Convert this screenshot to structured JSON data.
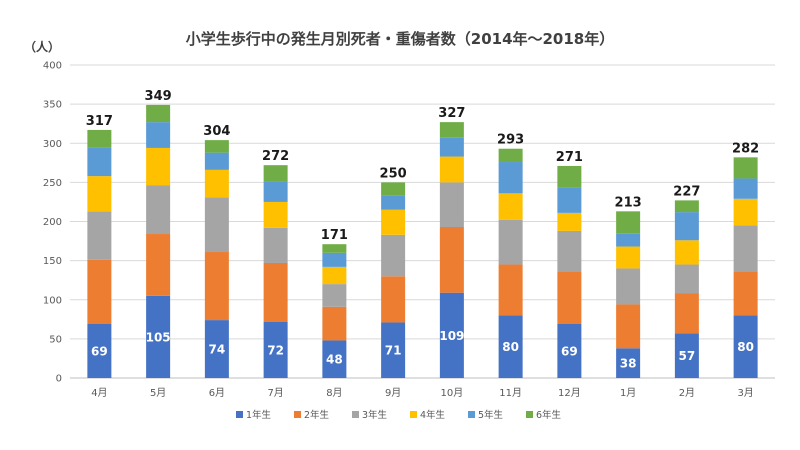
{
  "chart_data": {
    "type": "bar",
    "stacked": true,
    "title": "小学生歩行中の発生月別死者・重傷者数（2014年〜2018年）",
    "ylabel": "（人）",
    "xlabel": "",
    "ylim": [
      0,
      400
    ],
    "yticks": [
      0,
      50,
      100,
      150,
      200,
      250,
      300,
      350,
      400
    ],
    "grid": true,
    "legend_position": "bottom",
    "categories": [
      "4月",
      "5月",
      "6月",
      "7月",
      "8月",
      "9月",
      "10月",
      "11月",
      "12月",
      "1月",
      "2月",
      "3月"
    ],
    "series": [
      {
        "name": "1年生",
        "color": "#4472c4",
        "values": [
          69,
          105,
          74,
          72,
          48,
          71,
          109,
          80,
          69,
          38,
          57,
          80
        ]
      },
      {
        "name": "2年生",
        "color": "#ed7d31",
        "values": [
          82,
          79,
          87,
          75,
          43,
          59,
          84,
          65,
          67,
          56,
          51,
          56
        ]
      },
      {
        "name": "3年生",
        "color": "#a5a5a5",
        "values": [
          62,
          62,
          70,
          45,
          29,
          53,
          57,
          57,
          52,
          46,
          37,
          59
        ]
      },
      {
        "name": "4年生",
        "color": "#ffc000",
        "values": [
          45,
          48,
          35,
          33,
          22,
          32,
          33,
          34,
          23,
          28,
          31,
          34
        ]
      },
      {
        "name": "5年生",
        "color": "#5b9bd5",
        "values": [
          37,
          33,
          22,
          26,
          18,
          18,
          24,
          40,
          32,
          17,
          36,
          26
        ]
      },
      {
        "name": "6年生",
        "color": "#70ad47",
        "values": [
          22,
          22,
          16,
          21,
          11,
          17,
          20,
          17,
          28,
          28,
          15,
          27
        ]
      }
    ],
    "totals": [
      317,
      349,
      304,
      272,
      171,
      250,
      327,
      293,
      271,
      213,
      227,
      282
    ],
    "labeled_series": "1年生"
  }
}
